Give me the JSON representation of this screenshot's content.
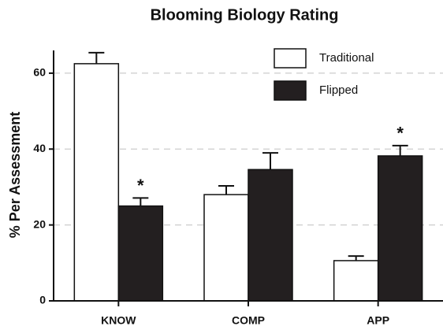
{
  "chart_data": {
    "type": "bar",
    "title": "Blooming Biology Rating",
    "y_label": "% Per Assessment",
    "categories": [
      "KNOW",
      "COMP",
      "APP"
    ],
    "series": [
      {
        "name": "Traditional",
        "color": "#ffffff",
        "values": [
          62.5,
          28,
          10.6
        ],
        "errors": [
          2.9,
          2.3,
          1.2
        ]
      },
      {
        "name": "Flipped",
        "color": "#231f20",
        "values": [
          25,
          34.6,
          38.2
        ],
        "errors": [
          2.1,
          4.4,
          2.7
        ]
      }
    ],
    "annotations": [
      {
        "text": "*",
        "category": "KNOW",
        "series": "Flipped"
      },
      {
        "text": "*",
        "category": "APP",
        "series": "Flipped"
      }
    ],
    "ylim": [
      0,
      66
    ],
    "yticks": [
      0,
      20,
      40,
      60
    ],
    "grid": true,
    "legend": "upper right"
  }
}
